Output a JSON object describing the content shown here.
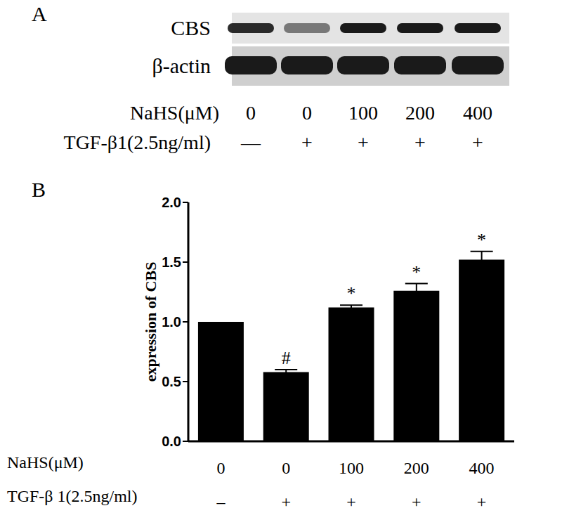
{
  "blot": {
    "label": "A",
    "rows": [
      "CBS",
      "β-actin"
    ],
    "conditions": [
      {
        "name": "NaHS(μM)",
        "values": [
          "0",
          "0",
          "100",
          "200",
          "400"
        ]
      },
      {
        "name": "TGF-β1(2.5ng/ml)",
        "values": [
          "—",
          "+",
          "+",
          "+",
          "+"
        ]
      }
    ]
  },
  "chart_data": {
    "label": "B",
    "type": "bar",
    "y_label": "expression of CBS",
    "categories": [
      "0",
      "0",
      "100",
      "200",
      "400"
    ],
    "category_title": "NaHS(μM)",
    "categories2": [
      "–",
      "+",
      "+",
      "+",
      "+"
    ],
    "category2_title": "TGF-β 1(2.5ng/ml)",
    "values": [
      1.0,
      0.58,
      1.12,
      1.26,
      1.52
    ],
    "errors": [
      0,
      0.02,
      0.02,
      0.06,
      0.07
    ],
    "annotations": [
      null,
      "#",
      "*",
      "*",
      "*"
    ],
    "color": "#000000",
    "ylim": [
      0,
      2
    ],
    "yticks": [
      {
        "value": 0,
        "label": "0.0"
      },
      {
        "value": 0.5,
        "label": "0.5"
      },
      {
        "value": 1,
        "label": "1.0"
      },
      {
        "value": 1.5,
        "label": "1.5"
      },
      {
        "value": 2,
        "label": "2.0"
      }
    ]
  }
}
